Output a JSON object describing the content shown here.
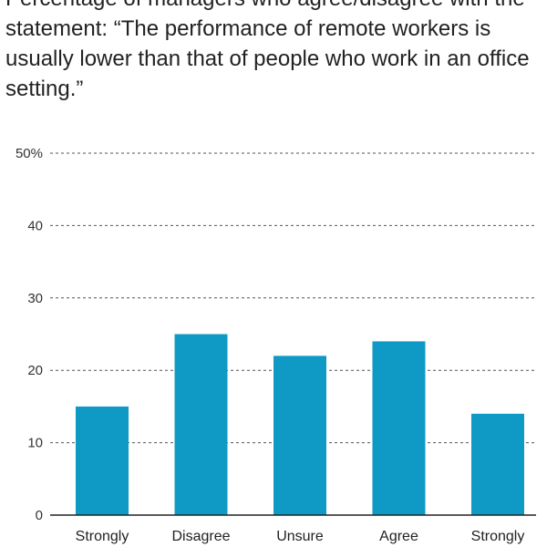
{
  "chart_data": {
    "type": "bar",
    "title": "Percentage of managers who agree/disagree with the statement: “The performance of remote workers is usually lower than that of people who work in an office setting.”",
    "categories": [
      "Strongly",
      "Disagree",
      "Unsure",
      "Agree",
      "Strongly"
    ],
    "values": [
      15,
      25,
      22,
      24,
      14
    ],
    "ylim": [
      0,
      50
    ],
    "yticks": [
      0,
      10,
      20,
      30,
      40,
      50
    ],
    "ytick_labels": [
      "0",
      "10",
      "20",
      "30",
      "40",
      "50%"
    ],
    "grid": true,
    "bar_color": "#0f9ac6"
  }
}
